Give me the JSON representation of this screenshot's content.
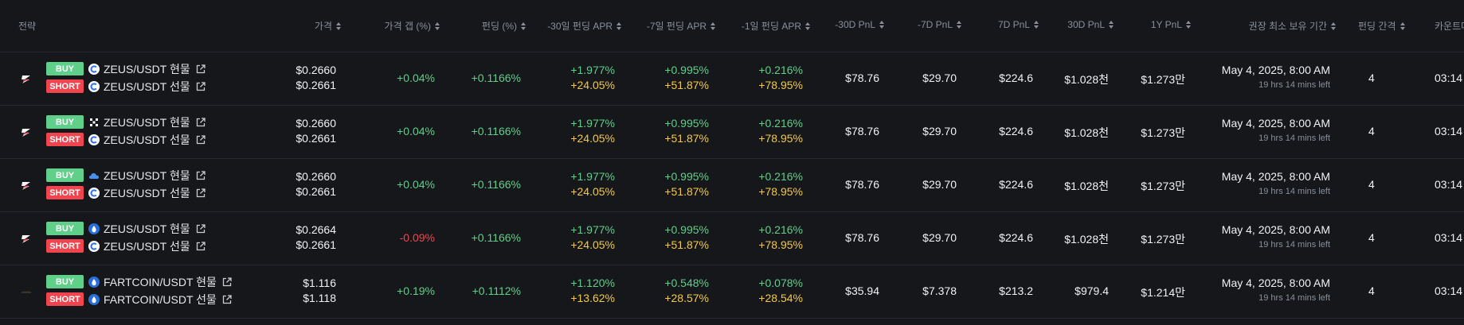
{
  "header": {
    "strategy": "전략",
    "price": "가격",
    "price_gap": "가격 갭 (%)",
    "funding": "펀딩 (%)",
    "apr30": "-30일 펀딩 APR",
    "apr7": "-7일 펀딩 APR",
    "apr1": "-1일 펀딩 APR",
    "pnl30": "-30D PnL",
    "pnl7": "-7D PnL",
    "pnl7f": "7D PnL",
    "pnl30f": "30D PnL",
    "pnl1y": "1Y PnL",
    "hold": "권장 최소 보유 기간",
    "interval": "펀딩 간격",
    "countdown": "카운트다"
  },
  "labels": {
    "buy": "BUY",
    "short": "SHORT"
  },
  "colors": {
    "positive": "#5fcf8a",
    "negative": "#f0454f",
    "apr_future": "#f3c944",
    "background": "#15171b"
  },
  "rows": [
    {
      "logo": "zeus-logo",
      "buy": {
        "exchange_icon": "exchange-blue-c-icon",
        "symbol": "ZEUS/USDT 현물"
      },
      "short": {
        "exchange_icon": "exchange-blue-c-icon",
        "symbol": "ZEUS/USDT 선물"
      },
      "price_buy": "$0.2660",
      "price_short": "$0.2661",
      "gap": "+0.04%",
      "gap_sign": "pos",
      "funding": "+0.1166%",
      "apr30_a": "+1.977%",
      "apr30_b": "+24.05%",
      "apr7_a": "+0.995%",
      "apr7_b": "+51.87%",
      "apr1_a": "+0.216%",
      "apr1_b": "+78.95%",
      "pnl30": "$78.76",
      "pnl7": "$29.70",
      "pnl7f": "$224.6",
      "pnl30f": "$1.028천",
      "pnl1y": "$1.273만",
      "hold_date": "May 4, 2025, 8:00 AM",
      "hold_left": "19 hrs 14 mins left",
      "interval": "4",
      "countdown": "03:14"
    },
    {
      "logo": "zeus-logo",
      "buy": {
        "exchange_icon": "exchange-x-icon",
        "symbol": "ZEUS/USDT 현물"
      },
      "short": {
        "exchange_icon": "exchange-blue-c-icon",
        "symbol": "ZEUS/USDT 선물"
      },
      "price_buy": "$0.2660",
      "price_short": "$0.2661",
      "gap": "+0.04%",
      "gap_sign": "pos",
      "funding": "+0.1166%",
      "apr30_a": "+1.977%",
      "apr30_b": "+24.05%",
      "apr7_a": "+0.995%",
      "apr7_b": "+51.87%",
      "apr1_a": "+0.216%",
      "apr1_b": "+78.95%",
      "pnl30": "$78.76",
      "pnl7": "$29.70",
      "pnl7f": "$224.6",
      "pnl30f": "$1.028천",
      "pnl1y": "$1.273만",
      "hold_date": "May 4, 2025, 8:00 AM",
      "hold_left": "19 hrs 14 mins left",
      "interval": "4",
      "countdown": "03:14"
    },
    {
      "logo": "zeus-logo",
      "buy": {
        "exchange_icon": "exchange-cloud-icon",
        "symbol": "ZEUS/USDT 현물"
      },
      "short": {
        "exchange_icon": "exchange-blue-c-icon",
        "symbol": "ZEUS/USDT 선물"
      },
      "price_buy": "$0.2660",
      "price_short": "$0.2661",
      "gap": "+0.04%",
      "gap_sign": "pos",
      "funding": "+0.1166%",
      "apr30_a": "+1.977%",
      "apr30_b": "+24.05%",
      "apr7_a": "+0.995%",
      "apr7_b": "+51.87%",
      "apr1_a": "+0.216%",
      "apr1_b": "+78.95%",
      "pnl30": "$78.76",
      "pnl7": "$29.70",
      "pnl7f": "$224.6",
      "pnl30f": "$1.028천",
      "pnl1y": "$1.273만",
      "hold_date": "May 4, 2025, 8:00 AM",
      "hold_left": "19 hrs 14 mins left",
      "interval": "4",
      "countdown": "03:14"
    },
    {
      "logo": "zeus-logo",
      "buy": {
        "exchange_icon": "exchange-drop-icon",
        "symbol": "ZEUS/USDT 현물"
      },
      "short": {
        "exchange_icon": "exchange-blue-c-icon",
        "symbol": "ZEUS/USDT 선물"
      },
      "price_buy": "$0.2664",
      "price_short": "$0.2661",
      "gap": "-0.09%",
      "gap_sign": "neg",
      "funding": "+0.1166%",
      "apr30_a": "+1.977%",
      "apr30_b": "+24.05%",
      "apr7_a": "+0.995%",
      "apr7_b": "+51.87%",
      "apr1_a": "+0.216%",
      "apr1_b": "+78.95%",
      "pnl30": "$78.76",
      "pnl7": "$29.70",
      "pnl7f": "$224.6",
      "pnl30f": "$1.028천",
      "pnl1y": "$1.273만",
      "hold_date": "May 4, 2025, 8:00 AM",
      "hold_left": "19 hrs 14 mins left",
      "interval": "4",
      "countdown": "03:14"
    },
    {
      "logo": "fartcoin-logo",
      "buy": {
        "exchange_icon": "exchange-drop-icon",
        "symbol": "FARTCOIN/USDT 현물"
      },
      "short": {
        "exchange_icon": "exchange-drop-icon",
        "symbol": "FARTCOIN/USDT 선물"
      },
      "price_buy": "$1.116",
      "price_short": "$1.118",
      "gap": "+0.19%",
      "gap_sign": "pos",
      "funding": "+0.1112%",
      "apr30_a": "+1.120%",
      "apr30_b": "+13.62%",
      "apr7_a": "+0.548%",
      "apr7_b": "+28.57%",
      "apr1_a": "+0.078%",
      "apr1_b": "+28.54%",
      "pnl30": "$35.94",
      "pnl7": "$7.378",
      "pnl7f": "$213.2",
      "pnl30f": "$979.4",
      "pnl1y": "$1.214만",
      "hold_date": "May 4, 2025, 8:00 AM",
      "hold_left": "19 hrs 14 mins left",
      "interval": "4",
      "countdown": "03:14"
    }
  ]
}
